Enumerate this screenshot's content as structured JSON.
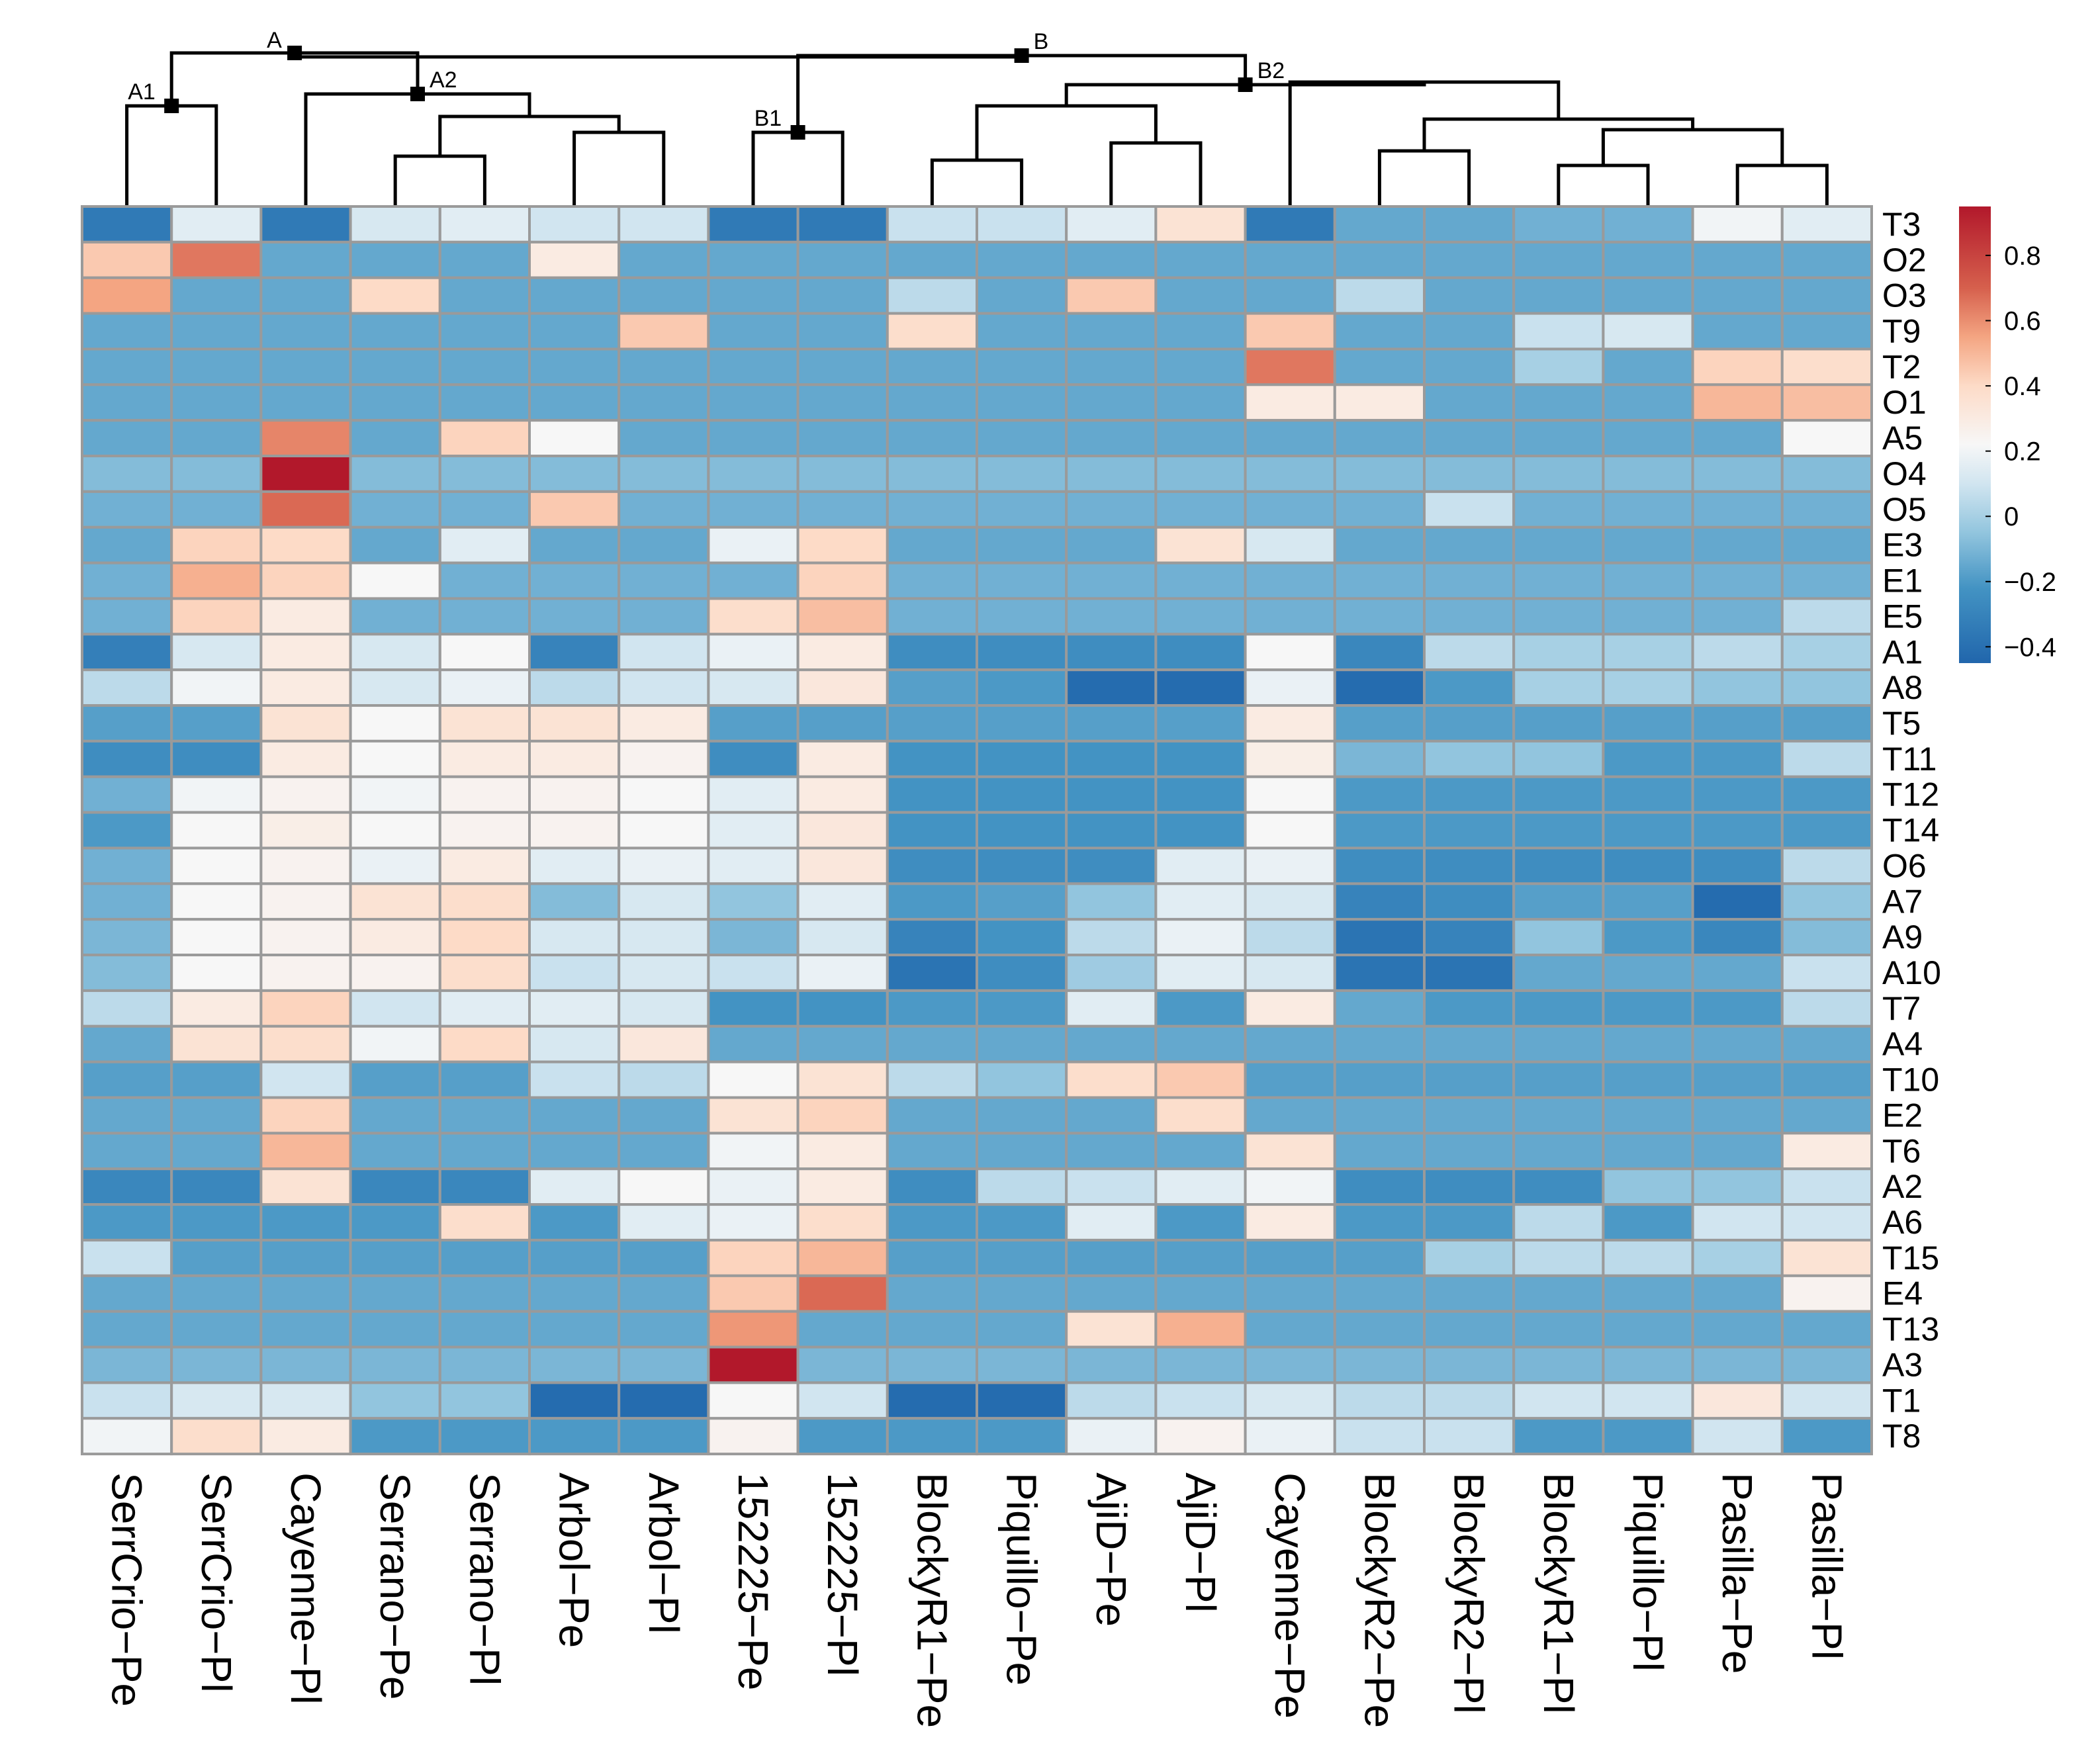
{
  "chart_data": {
    "type": "heatmap",
    "title": "",
    "columns": [
      "SerrCrio−Pe",
      "SerrCrio−Pl",
      "Cayenne−Pl",
      "Serrano−Pe",
      "Serrano−Pl",
      "Arbol−Pe",
      "Arbol−Pl",
      "152225−Pe",
      "152225−Pl",
      "BlockyR1−Pe",
      "Piquillo−Pe",
      "AjiD−Pe",
      "AjiD−Pl",
      "Cayenne−Pe",
      "BlockyR2−Pe",
      "BlockyR2−Pl",
      "BlockyR1−Pl",
      "Piquillo−Pl",
      "Pasilla−Pe",
      "Pasilla−Pl"
    ],
    "rows": [
      "T3",
      "O2",
      "O3",
      "T9",
      "T2",
      "O1",
      "A5",
      "O4",
      "O5",
      "E3",
      "E1",
      "E5",
      "A1",
      "A8",
      "T5",
      "T11",
      "T12",
      "T14",
      "O6",
      "A7",
      "A9",
      "A10",
      "T7",
      "A4",
      "T10",
      "E2",
      "T6",
      "A2",
      "A6",
      "T15",
      "E4",
      "T13",
      "A3",
      "T1",
      "T8"
    ],
    "values": [
      [
        -0.35,
        0.15,
        -0.35,
        0.12,
        0.15,
        0.1,
        0.1,
        -0.35,
        -0.35,
        0.08,
        0.08,
        0.15,
        0.35,
        -0.35,
        -0.15,
        -0.15,
        -0.12,
        -0.12,
        0.2,
        0.15
      ],
      [
        0.45,
        0.65,
        -0.15,
        -0.15,
        -0.15,
        0.3,
        -0.15,
        -0.15,
        -0.15,
        -0.15,
        -0.15,
        -0.15,
        -0.15,
        -0.15,
        -0.15,
        -0.15,
        -0.15,
        -0.15,
        -0.15,
        -0.15
      ],
      [
        0.55,
        -0.15,
        -0.15,
        0.4,
        -0.15,
        -0.15,
        -0.15,
        -0.15,
        -0.15,
        0.05,
        -0.15,
        0.45,
        -0.15,
        -0.15,
        0.05,
        -0.15,
        -0.15,
        -0.15,
        -0.15,
        -0.15
      ],
      [
        -0.15,
        -0.15,
        -0.15,
        -0.15,
        -0.15,
        -0.15,
        0.45,
        -0.15,
        -0.15,
        0.38,
        -0.15,
        -0.15,
        -0.15,
        0.45,
        -0.15,
        -0.15,
        0.08,
        0.12,
        -0.15,
        -0.15
      ],
      [
        -0.15,
        -0.15,
        -0.15,
        -0.15,
        -0.15,
        -0.15,
        -0.15,
        -0.15,
        -0.15,
        -0.15,
        -0.15,
        -0.15,
        -0.15,
        0.65,
        -0.15,
        -0.15,
        0.0,
        -0.15,
        0.42,
        0.38
      ],
      [
        -0.15,
        -0.15,
        -0.15,
        -0.15,
        -0.15,
        -0.15,
        -0.15,
        -0.15,
        -0.15,
        -0.15,
        -0.15,
        -0.15,
        -0.15,
        0.3,
        0.3,
        -0.15,
        -0.15,
        -0.15,
        0.5,
        0.48
      ],
      [
        -0.15,
        -0.15,
        0.62,
        -0.15,
        0.42,
        0.22,
        -0.15,
        -0.15,
        -0.15,
        -0.15,
        -0.15,
        -0.15,
        -0.15,
        -0.15,
        -0.15,
        -0.15,
        -0.15,
        -0.15,
        -0.15,
        0.22
      ],
      [
        -0.08,
        -0.08,
        0.95,
        -0.08,
        -0.08,
        -0.08,
        -0.08,
        -0.08,
        -0.08,
        -0.08,
        -0.08,
        -0.08,
        -0.08,
        -0.08,
        -0.08,
        -0.08,
        -0.08,
        -0.08,
        -0.08,
        -0.08
      ],
      [
        -0.12,
        -0.12,
        0.68,
        -0.12,
        -0.12,
        0.45,
        -0.12,
        -0.12,
        -0.12,
        -0.12,
        -0.12,
        -0.12,
        -0.12,
        -0.12,
        -0.12,
        0.08,
        -0.12,
        -0.12,
        -0.12,
        -0.12
      ],
      [
        -0.15,
        0.42,
        0.4,
        -0.15,
        0.15,
        -0.15,
        -0.15,
        0.18,
        0.4,
        -0.15,
        -0.15,
        -0.15,
        0.35,
        0.12,
        -0.15,
        -0.15,
        -0.15,
        -0.15,
        -0.15,
        -0.15
      ],
      [
        -0.12,
        0.52,
        0.42,
        0.22,
        -0.12,
        -0.12,
        -0.12,
        -0.12,
        0.42,
        -0.12,
        -0.12,
        -0.12,
        -0.12,
        -0.12,
        -0.12,
        -0.12,
        -0.12,
        -0.12,
        -0.12,
        -0.12
      ],
      [
        -0.12,
        0.42,
        0.3,
        -0.12,
        -0.12,
        -0.12,
        -0.12,
        0.38,
        0.48,
        -0.12,
        -0.12,
        -0.12,
        -0.12,
        -0.12,
        -0.12,
        -0.12,
        -0.12,
        -0.12,
        -0.12,
        0.05
      ],
      [
        -0.32,
        0.12,
        0.3,
        0.12,
        0.22,
        -0.3,
        0.1,
        0.18,
        0.3,
        -0.25,
        -0.25,
        -0.25,
        -0.25,
        0.22,
        -0.28,
        0.05,
        0.0,
        0.0,
        0.05,
        0.0
      ],
      [
        0.05,
        0.2,
        0.3,
        0.12,
        0.18,
        0.05,
        0.1,
        0.12,
        0.32,
        -0.18,
        -0.2,
        -0.42,
        -0.42,
        0.18,
        -0.42,
        -0.2,
        0.0,
        0.0,
        -0.05,
        -0.05
      ],
      [
        -0.18,
        -0.18,
        0.35,
        0.22,
        0.35,
        0.35,
        0.3,
        -0.18,
        -0.18,
        -0.18,
        -0.18,
        -0.18,
        -0.18,
        0.3,
        -0.18,
        -0.18,
        -0.18,
        -0.18,
        -0.18,
        -0.18
      ],
      [
        -0.25,
        -0.25,
        0.3,
        0.22,
        0.3,
        0.3,
        0.25,
        -0.25,
        0.3,
        -0.22,
        -0.22,
        -0.22,
        -0.22,
        0.28,
        -0.1,
        -0.05,
        -0.05,
        -0.2,
        -0.2,
        0.05
      ],
      [
        -0.12,
        0.2,
        0.25,
        0.2,
        0.25,
        0.25,
        0.22,
        0.15,
        0.3,
        -0.22,
        -0.22,
        -0.22,
        -0.22,
        0.22,
        -0.2,
        -0.2,
        -0.2,
        -0.2,
        -0.2,
        -0.2
      ],
      [
        -0.2,
        0.22,
        0.28,
        0.22,
        0.25,
        0.25,
        0.22,
        0.15,
        0.32,
        -0.22,
        -0.22,
        -0.22,
        -0.22,
        0.22,
        -0.2,
        -0.2,
        -0.2,
        -0.2,
        -0.2,
        -0.2
      ],
      [
        -0.12,
        0.22,
        0.25,
        0.18,
        0.3,
        0.15,
        0.18,
        0.15,
        0.32,
        -0.25,
        -0.25,
        -0.25,
        0.15,
        0.18,
        -0.25,
        -0.25,
        -0.25,
        -0.25,
        -0.25,
        0.05
      ],
      [
        -0.12,
        0.22,
        0.25,
        0.35,
        0.38,
        -0.08,
        0.12,
        -0.05,
        0.15,
        -0.2,
        -0.18,
        -0.05,
        0.15,
        0.12,
        -0.3,
        -0.25,
        -0.18,
        -0.18,
        -0.42,
        -0.05
      ],
      [
        -0.1,
        0.22,
        0.25,
        0.3,
        0.4,
        0.12,
        0.12,
        -0.1,
        0.12,
        -0.3,
        -0.22,
        0.05,
        0.18,
        0.05,
        -0.38,
        -0.3,
        -0.05,
        -0.2,
        -0.28,
        -0.08
      ],
      [
        -0.08,
        0.22,
        0.25,
        0.25,
        0.38,
        0.08,
        0.12,
        0.08,
        0.18,
        -0.38,
        -0.25,
        -0.02,
        0.15,
        0.12,
        -0.38,
        -0.38,
        -0.15,
        -0.15,
        -0.15,
        0.08
      ],
      [
        0.05,
        0.3,
        0.42,
        0.1,
        0.15,
        0.15,
        0.12,
        -0.22,
        -0.22,
        -0.2,
        -0.2,
        0.15,
        -0.2,
        0.3,
        -0.15,
        -0.2,
        -0.2,
        -0.2,
        -0.2,
        0.05
      ],
      [
        -0.15,
        0.35,
        0.38,
        0.2,
        0.4,
        0.12,
        0.32,
        -0.15,
        -0.15,
        -0.15,
        -0.15,
        -0.15,
        -0.15,
        -0.15,
        -0.15,
        -0.15,
        -0.15,
        -0.15,
        -0.15,
        -0.15
      ],
      [
        -0.18,
        -0.18,
        0.1,
        -0.18,
        -0.18,
        0.08,
        0.05,
        0.22,
        0.35,
        0.05,
        -0.05,
        0.38,
        0.45,
        -0.18,
        -0.18,
        -0.18,
        -0.18,
        -0.18,
        -0.18,
        -0.18
      ],
      [
        -0.15,
        -0.15,
        0.42,
        -0.15,
        -0.15,
        -0.15,
        -0.15,
        0.35,
        0.42,
        -0.15,
        -0.15,
        -0.15,
        0.38,
        -0.15,
        -0.15,
        -0.15,
        -0.15,
        -0.15,
        -0.15,
        -0.15
      ],
      [
        -0.15,
        -0.15,
        0.5,
        -0.15,
        -0.15,
        -0.15,
        -0.15,
        0.2,
        0.3,
        -0.15,
        -0.15,
        -0.15,
        -0.15,
        0.35,
        -0.15,
        -0.15,
        -0.15,
        -0.15,
        -0.15,
        0.3
      ],
      [
        -0.28,
        -0.28,
        0.35,
        -0.28,
        -0.28,
        0.15,
        0.22,
        0.18,
        0.3,
        -0.25,
        0.05,
        0.08,
        0.15,
        0.2,
        -0.25,
        -0.25,
        -0.25,
        -0.05,
        -0.05,
        0.08
      ],
      [
        -0.2,
        -0.2,
        -0.2,
        -0.2,
        0.38,
        -0.2,
        0.15,
        0.18,
        0.38,
        -0.2,
        -0.2,
        0.15,
        -0.2,
        0.3,
        -0.2,
        -0.2,
        0.05,
        -0.2,
        0.1,
        0.1
      ],
      [
        0.08,
        -0.18,
        -0.18,
        -0.18,
        -0.18,
        -0.18,
        -0.18,
        0.42,
        0.5,
        -0.18,
        -0.18,
        -0.18,
        -0.18,
        -0.18,
        -0.18,
        0.0,
        0.05,
        0.05,
        0.0,
        0.35
      ],
      [
        -0.15,
        -0.15,
        -0.15,
        -0.15,
        -0.15,
        -0.15,
        -0.15,
        0.45,
        0.68,
        -0.15,
        -0.15,
        -0.15,
        -0.15,
        -0.15,
        -0.15,
        -0.15,
        -0.15,
        -0.15,
        -0.15,
        0.25
      ],
      [
        -0.15,
        -0.15,
        -0.15,
        -0.15,
        -0.15,
        -0.15,
        -0.15,
        0.58,
        -0.15,
        -0.15,
        -0.15,
        0.35,
        0.52,
        -0.15,
        -0.15,
        -0.15,
        -0.15,
        -0.15,
        -0.15,
        -0.15
      ],
      [
        -0.1,
        -0.1,
        -0.1,
        -0.1,
        -0.1,
        -0.1,
        -0.1,
        0.95,
        -0.1,
        -0.1,
        -0.1,
        -0.1,
        -0.1,
        -0.1,
        -0.1,
        -0.1,
        -0.1,
        -0.1,
        -0.1,
        -0.1
      ],
      [
        0.08,
        0.12,
        0.12,
        -0.05,
        -0.05,
        -0.42,
        -0.42,
        0.22,
        0.1,
        -0.42,
        -0.42,
        0.05,
        0.08,
        0.12,
        0.05,
        0.05,
        0.1,
        0.1,
        0.32,
        0.1
      ],
      [
        0.2,
        0.38,
        0.3,
        -0.2,
        -0.2,
        -0.2,
        -0.2,
        0.25,
        -0.2,
        -0.2,
        -0.2,
        0.18,
        0.25,
        0.18,
        0.08,
        0.08,
        -0.2,
        -0.2,
        0.1,
        -0.2
      ]
    ],
    "color_scale": {
      "min": -0.45,
      "max": 0.95,
      "stops": [
        {
          "value": -0.45,
          "color": "#2166ac"
        },
        {
          "value": -0.22,
          "color": "#4393c3"
        },
        {
          "value": -0.05,
          "color": "#92c5de"
        },
        {
          "value": 0.1,
          "color": "#d1e5f0"
        },
        {
          "value": 0.22,
          "color": "#f7f7f7"
        },
        {
          "value": 0.4,
          "color": "#fddbc7"
        },
        {
          "value": 0.55,
          "color": "#f4a582"
        },
        {
          "value": 0.7,
          "color": "#d6604d"
        },
        {
          "value": 0.95,
          "color": "#b2182b"
        }
      ],
      "ticks": [
        "0.8",
        "0.6",
        "0.4",
        "0.2",
        "0",
        "−0.2",
        "−0.4"
      ]
    },
    "dendrogram": {
      "node_labels": [
        "A",
        "A1",
        "A2",
        "B",
        "B1",
        "B2"
      ]
    }
  }
}
